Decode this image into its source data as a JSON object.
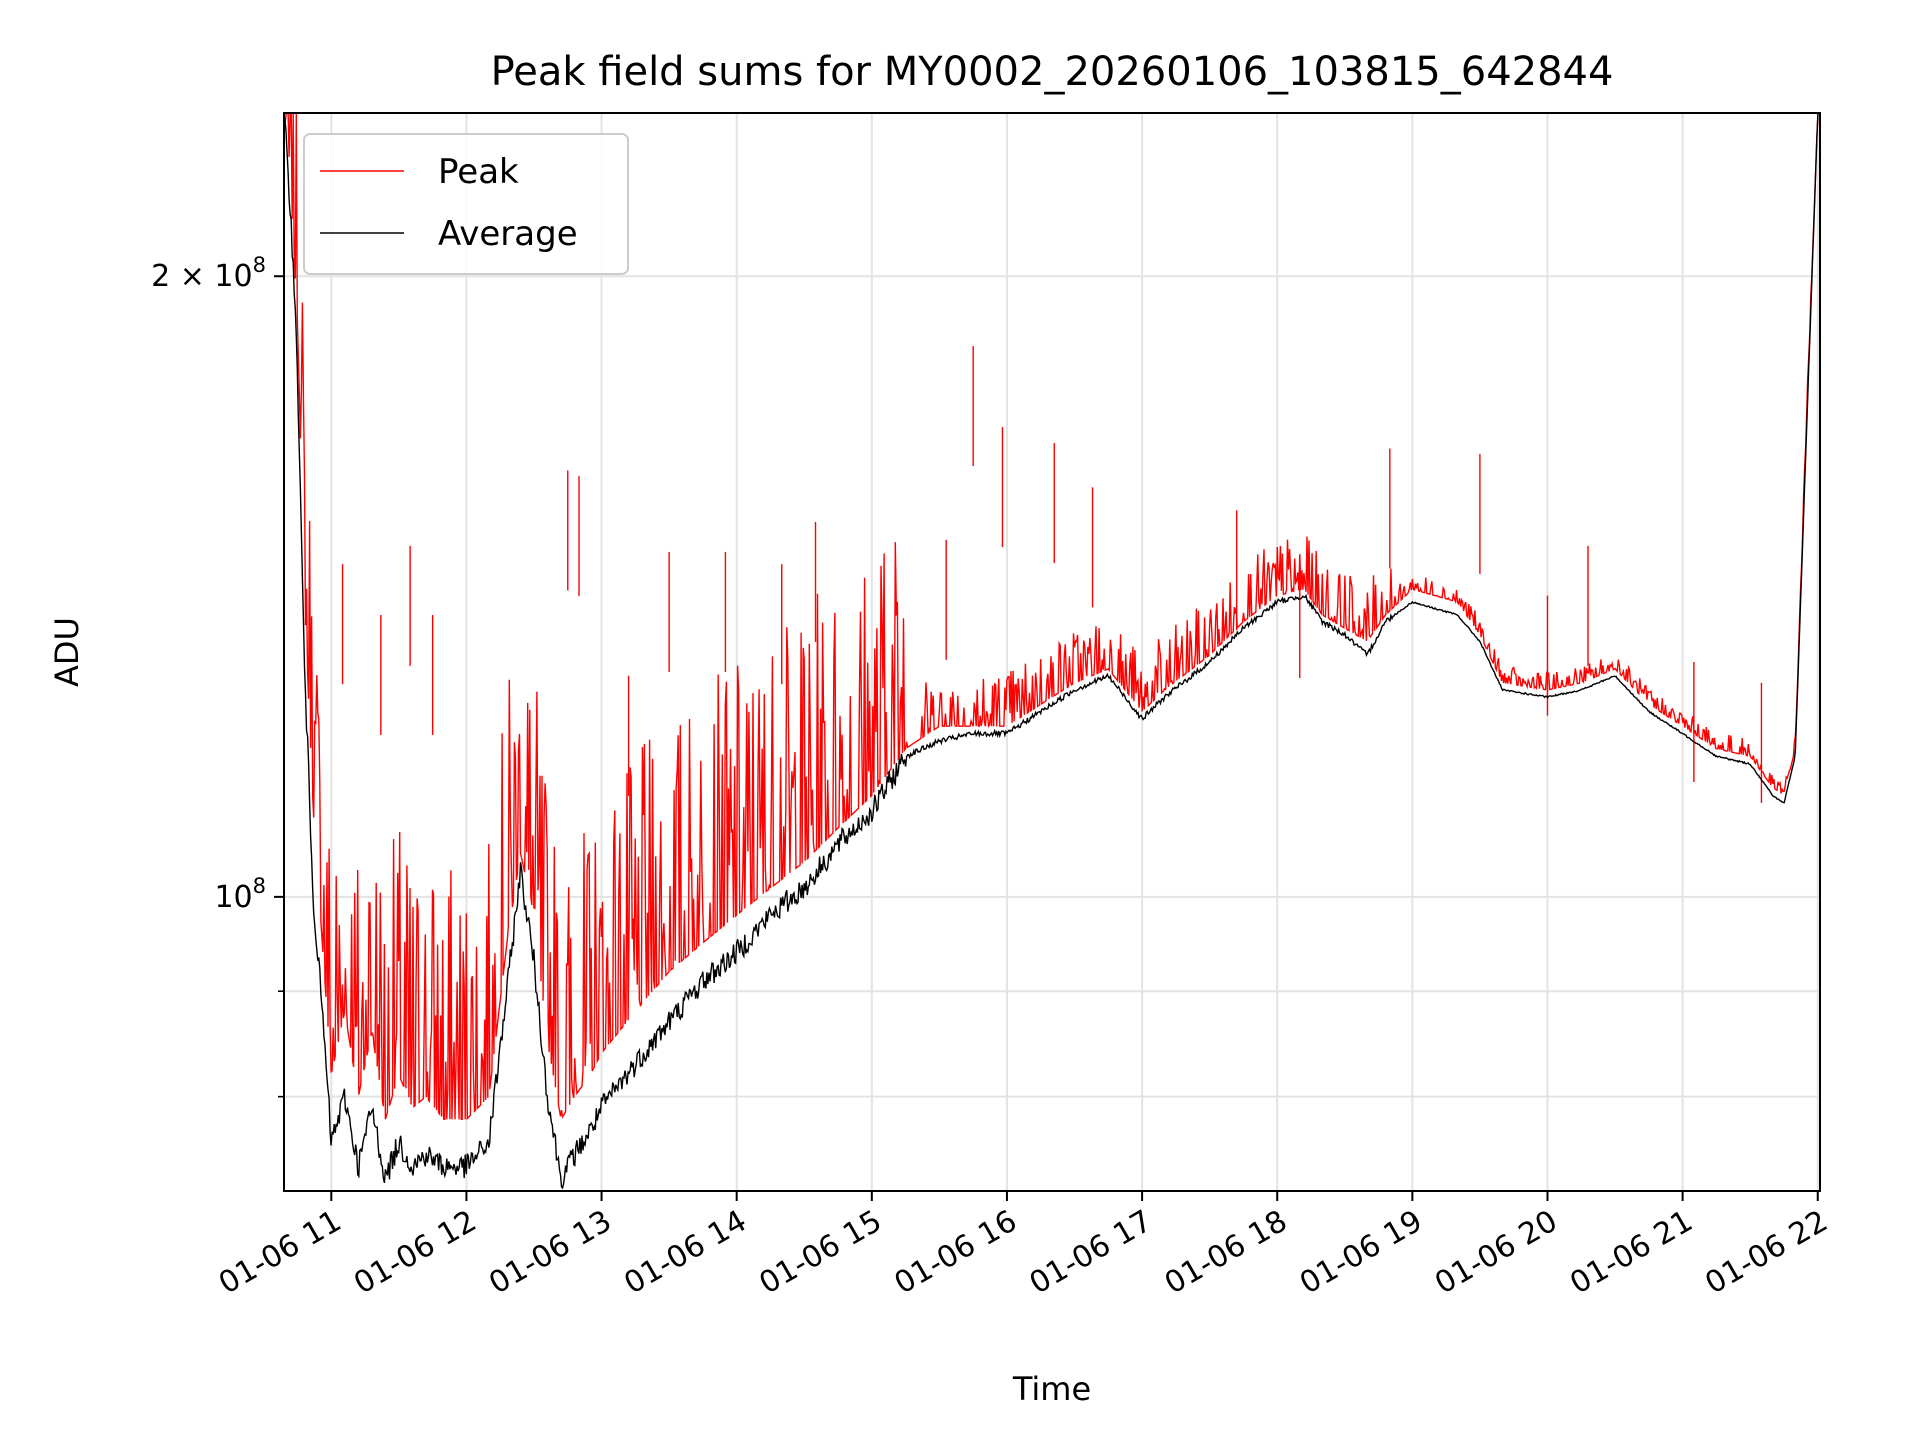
{
  "chart_data": {
    "type": "line",
    "title": "Peak field sums for MY0002_20260106_103815_642844",
    "xlabel": "Time",
    "ylabel": "ADU",
    "y_scale": "log",
    "ylim": [
      72000000,
      240000000
    ],
    "xlim": [
      "2026-01-06 10:39",
      "2026-01-06 22:01"
    ],
    "x_ticks": [
      {
        "t": "2026-01-06 11:00",
        "label": "01-06 11"
      },
      {
        "t": "2026-01-06 12:00",
        "label": "01-06 12"
      },
      {
        "t": "2026-01-06 13:00",
        "label": "01-06 13"
      },
      {
        "t": "2026-01-06 14:00",
        "label": "01-06 14"
      },
      {
        "t": "2026-01-06 15:00",
        "label": "01-06 15"
      },
      {
        "t": "2026-01-06 16:00",
        "label": "01-06 16"
      },
      {
        "t": "2026-01-06 17:00",
        "label": "01-06 17"
      },
      {
        "t": "2026-01-06 18:00",
        "label": "01-06 18"
      },
      {
        "t": "2026-01-06 19:00",
        "label": "01-06 19"
      },
      {
        "t": "2026-01-06 20:00",
        "label": "01-06 20"
      },
      {
        "t": "2026-01-06 21:00",
        "label": "01-06 21"
      },
      {
        "t": "2026-01-06 22:00",
        "label": "01-06 22"
      }
    ],
    "y_major_ticks": [
      {
        "value": 100000000,
        "base": "10",
        "exp": "8",
        "coef": ""
      },
      {
        "value": 200000000,
        "base": "10",
        "exp": "8",
        "coef": "2 × "
      }
    ],
    "y_minor_ticks": [
      80000000,
      90000000
    ],
    "grid": true,
    "legend": {
      "placement": "upper-left",
      "entries": [
        "Peak",
        "Average"
      ]
    },
    "series": [
      {
        "name": "Peak",
        "color": "#ff0000",
        "x": [
          "2026-01-06 10:39",
          "2026-01-06 10:42",
          "2026-01-06 10:45",
          "2026-01-06 10:48",
          "2026-01-06 10:52",
          "2026-01-06 10:56",
          "2026-01-06 11:00",
          "2026-01-06 11:06",
          "2026-01-06 11:12",
          "2026-01-06 11:18",
          "2026-01-06 11:24",
          "2026-01-06 11:30",
          "2026-01-06 11:36",
          "2026-01-06 11:42",
          "2026-01-06 11:50",
          "2026-01-06 12:00",
          "2026-01-06 12:10",
          "2026-01-06 12:18",
          "2026-01-06 12:24",
          "2026-01-06 12:30",
          "2026-01-06 12:36",
          "2026-01-06 12:42",
          "2026-01-06 12:48",
          "2026-01-06 12:55",
          "2026-01-06 13:00",
          "2026-01-06 13:15",
          "2026-01-06 13:30",
          "2026-01-06 13:45",
          "2026-01-06 14:00",
          "2026-01-06 14:15",
          "2026-01-06 14:30",
          "2026-01-06 14:45",
          "2026-01-06 15:00",
          "2026-01-06 15:15",
          "2026-01-06 15:30",
          "2026-01-06 15:45",
          "2026-01-06 16:00",
          "2026-01-06 16:15",
          "2026-01-06 16:30",
          "2026-01-06 16:45",
          "2026-01-06 17:00",
          "2026-01-06 17:10",
          "2026-01-06 17:30",
          "2026-01-06 17:45",
          "2026-01-06 18:00",
          "2026-01-06 18:12",
          "2026-01-06 18:20",
          "2026-01-06 18:30",
          "2026-01-06 18:40",
          "2026-01-06 18:48",
          "2026-01-06 19:00",
          "2026-01-06 19:10",
          "2026-01-06 19:20",
          "2026-01-06 19:30",
          "2026-01-06 19:40",
          "2026-01-06 20:00",
          "2026-01-06 20:15",
          "2026-01-06 20:30",
          "2026-01-06 20:45",
          "2026-01-06 21:00",
          "2026-01-06 21:15",
          "2026-01-06 21:30",
          "2026-01-06 21:40",
          "2026-01-06 21:45",
          "2026-01-06 21:50",
          "2026-01-06 21:55",
          "2026-01-06 22:00"
        ],
        "y": [
          240000000,
          220000000,
          190000000,
          140000000,
          110000000,
          95000000,
          82000000,
          88000000,
          80000000,
          86000000,
          78000000,
          82000000,
          79000000,
          80000000,
          78000000,
          78000000,
          80000000,
          95000000,
          105000000,
          98000000,
          85000000,
          78000000,
          80000000,
          82000000,
          84000000,
          88000000,
          92000000,
          95000000,
          98000000,
          101000000,
          104000000,
          108000000,
          112000000,
          118000000,
          121000000,
          121000000,
          121000000,
          124000000,
          127000000,
          129000000,
          123000000,
          126000000,
          131000000,
          136000000,
          140000000,
          141000000,
          137000000,
          135000000,
          133000000,
          137000000,
          141000000,
          140000000,
          139000000,
          134000000,
          127000000,
          126000000,
          127000000,
          129000000,
          124000000,
          121000000,
          118000000,
          117000000,
          113000000,
          112000000,
          118000000,
          170000000,
          240000000
        ]
      },
      {
        "name": "Average",
        "color": "#000000",
        "x": [
          "2026-01-06 10:39",
          "2026-01-06 10:42",
          "2026-01-06 10:45",
          "2026-01-06 10:48",
          "2026-01-06 10:52",
          "2026-01-06 10:56",
          "2026-01-06 11:00",
          "2026-01-06 11:06",
          "2026-01-06 11:12",
          "2026-01-06 11:18",
          "2026-01-06 11:24",
          "2026-01-06 11:30",
          "2026-01-06 11:36",
          "2026-01-06 11:42",
          "2026-01-06 11:50",
          "2026-01-06 12:00",
          "2026-01-06 12:10",
          "2026-01-06 12:18",
          "2026-01-06 12:24",
          "2026-01-06 12:30",
          "2026-01-06 12:36",
          "2026-01-06 12:42",
          "2026-01-06 12:48",
          "2026-01-06 12:55",
          "2026-01-06 13:00",
          "2026-01-06 13:15",
          "2026-01-06 13:30",
          "2026-01-06 13:45",
          "2026-01-06 14:00",
          "2026-01-06 14:15",
          "2026-01-06 14:30",
          "2026-01-06 14:45",
          "2026-01-06 15:00",
          "2026-01-06 15:15",
          "2026-01-06 15:30",
          "2026-01-06 15:45",
          "2026-01-06 16:00",
          "2026-01-06 16:15",
          "2026-01-06 16:30",
          "2026-01-06 16:45",
          "2026-01-06 17:00",
          "2026-01-06 17:10",
          "2026-01-06 17:30",
          "2026-01-06 17:45",
          "2026-01-06 18:00",
          "2026-01-06 18:12",
          "2026-01-06 18:20",
          "2026-01-06 18:30",
          "2026-01-06 18:40",
          "2026-01-06 18:48",
          "2026-01-06 19:00",
          "2026-01-06 19:10",
          "2026-01-06 19:20",
          "2026-01-06 19:30",
          "2026-01-06 19:40",
          "2026-01-06 20:00",
          "2026-01-06 20:15",
          "2026-01-06 20:30",
          "2026-01-06 20:45",
          "2026-01-06 21:00",
          "2026-01-06 21:15",
          "2026-01-06 21:30",
          "2026-01-06 21:40",
          "2026-01-06 21:45",
          "2026-01-06 21:50",
          "2026-01-06 21:55",
          "2026-01-06 22:00"
        ],
        "y": [
          240000000,
          215000000,
          180000000,
          130000000,
          100000000,
          88000000,
          76000000,
          80000000,
          74000000,
          79000000,
          73000000,
          76000000,
          74000000,
          75000000,
          74000000,
          74000000,
          76000000,
          90000000,
          103000000,
          93000000,
          80000000,
          73000000,
          75000000,
          77000000,
          79000000,
          83000000,
          87000000,
          91000000,
          94000000,
          98000000,
          101000000,
          106000000,
          110000000,
          117000000,
          119000000,
          120000000,
          120000000,
          123000000,
          126000000,
          128000000,
          122000000,
          125000000,
          130000000,
          135000000,
          139000000,
          140000000,
          136000000,
          134000000,
          131000000,
          136000000,
          139000000,
          138000000,
          137000000,
          133000000,
          126000000,
          125000000,
          126000000,
          128000000,
          123000000,
          120000000,
          117000000,
          116000000,
          112000000,
          111000000,
          117000000,
          168000000,
          240000000
        ]
      }
    ],
    "peak_spikes": [
      {
        "t": "2026-01-06 11:05",
        "y": 145000000
      },
      {
        "t": "2026-01-06 11:22",
        "y": 137000000
      },
      {
        "t": "2026-01-06 11:35",
        "y": 148000000
      },
      {
        "t": "2026-01-06 11:45",
        "y": 137000000
      },
      {
        "t": "2026-01-06 12:45",
        "y": 161000000
      },
      {
        "t": "2026-01-06 12:50",
        "y": 160000000
      },
      {
        "t": "2026-01-06 13:12",
        "y": 128000000
      },
      {
        "t": "2026-01-06 13:30",
        "y": 147000000
      },
      {
        "t": "2026-01-06 13:55",
        "y": 147000000
      },
      {
        "t": "2026-01-06 14:20",
        "y": 145000000
      },
      {
        "t": "2026-01-06 14:35",
        "y": 152000000
      },
      {
        "t": "2026-01-06 15:33",
        "y": 149000000
      },
      {
        "t": "2026-01-06 15:45",
        "y": 185000000
      },
      {
        "t": "2026-01-06 15:58",
        "y": 169000000
      },
      {
        "t": "2026-01-06 16:21",
        "y": 166000000
      },
      {
        "t": "2026-01-06 16:38",
        "y": 158000000
      },
      {
        "t": "2026-01-06 17:42",
        "y": 154000000
      },
      {
        "t": "2026-01-06 18:10",
        "y": 146000000
      },
      {
        "t": "2026-01-06 18:50",
        "y": 165000000
      },
      {
        "t": "2026-01-06 19:30",
        "y": 164000000
      },
      {
        "t": "2026-01-06 20:00",
        "y": 140000000
      },
      {
        "t": "2026-01-06 20:18",
        "y": 148000000
      },
      {
        "t": "2026-01-06 21:05",
        "y": 130000000
      },
      {
        "t": "2026-01-06 21:35",
        "y": 127000000
      }
    ]
  }
}
